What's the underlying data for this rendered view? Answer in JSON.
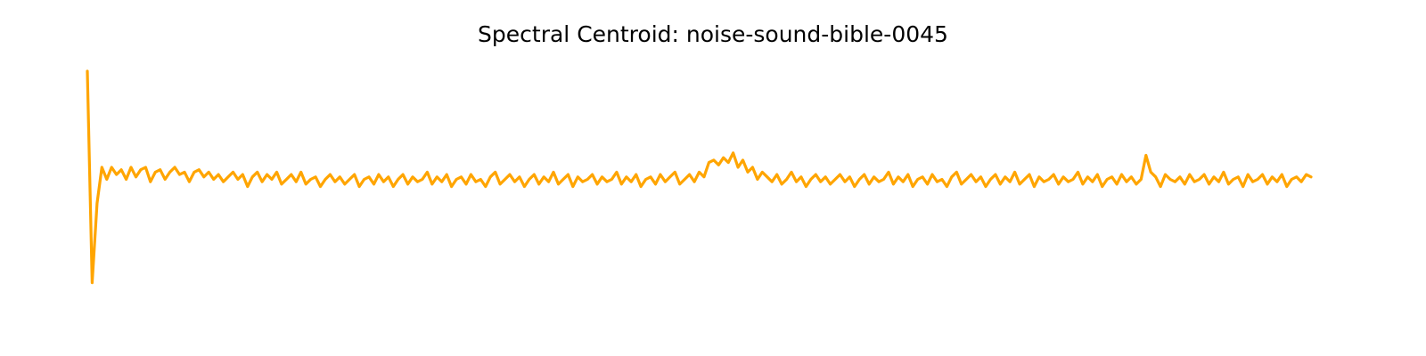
{
  "chart_data": {
    "type": "line",
    "title": "Spectral Centroid: noise-sound-bible-0045",
    "xlabel": "",
    "ylabel": "",
    "axes_visible": false,
    "grid": false,
    "line_color": "#FFA500",
    "series": [
      {
        "values": [
          1.0,
          0.12,
          0.45,
          0.6,
          0.55,
          0.6,
          0.57,
          0.59,
          0.55,
          0.6,
          0.56,
          0.59,
          0.6,
          0.54,
          0.58,
          0.59,
          0.55,
          0.58,
          0.6,
          0.57,
          0.58,
          0.54,
          0.58,
          0.59,
          0.56,
          0.58,
          0.55,
          0.57,
          0.54,
          0.56,
          0.58,
          0.55,
          0.57,
          0.52,
          0.56,
          0.58,
          0.54,
          0.57,
          0.55,
          0.58,
          0.53,
          0.55,
          0.57,
          0.54,
          0.58,
          0.53,
          0.55,
          0.56,
          0.52,
          0.55,
          0.57,
          0.54,
          0.56,
          0.53,
          0.55,
          0.57,
          0.52,
          0.55,
          0.56,
          0.53,
          0.57,
          0.54,
          0.56,
          0.52,
          0.55,
          0.57,
          0.53,
          0.56,
          0.54,
          0.55,
          0.58,
          0.53,
          0.56,
          0.54,
          0.57,
          0.52,
          0.55,
          0.56,
          0.53,
          0.57,
          0.54,
          0.55,
          0.52,
          0.56,
          0.58,
          0.53,
          0.55,
          0.57,
          0.54,
          0.56,
          0.52,
          0.55,
          0.57,
          0.53,
          0.56,
          0.54,
          0.58,
          0.53,
          0.55,
          0.57,
          0.52,
          0.56,
          0.54,
          0.55,
          0.57,
          0.53,
          0.56,
          0.54,
          0.55,
          0.58,
          0.53,
          0.56,
          0.54,
          0.57,
          0.52,
          0.55,
          0.56,
          0.53,
          0.57,
          0.54,
          0.56,
          0.58,
          0.53,
          0.55,
          0.57,
          0.54,
          0.58,
          0.56,
          0.62,
          0.63,
          0.61,
          0.64,
          0.62,
          0.66,
          0.6,
          0.63,
          0.58,
          0.6,
          0.55,
          0.58,
          0.56,
          0.54,
          0.57,
          0.53,
          0.55,
          0.58,
          0.54,
          0.56,
          0.52,
          0.55,
          0.57,
          0.54,
          0.56,
          0.53,
          0.55,
          0.57,
          0.54,
          0.56,
          0.52,
          0.55,
          0.57,
          0.53,
          0.56,
          0.54,
          0.55,
          0.58,
          0.53,
          0.56,
          0.54,
          0.57,
          0.52,
          0.55,
          0.56,
          0.53,
          0.57,
          0.54,
          0.55,
          0.52,
          0.56,
          0.58,
          0.53,
          0.55,
          0.57,
          0.54,
          0.56,
          0.52,
          0.55,
          0.57,
          0.53,
          0.56,
          0.54,
          0.58,
          0.53,
          0.55,
          0.57,
          0.52,
          0.56,
          0.54,
          0.55,
          0.57,
          0.53,
          0.56,
          0.54,
          0.55,
          0.58,
          0.53,
          0.56,
          0.54,
          0.57,
          0.52,
          0.55,
          0.56,
          0.53,
          0.57,
          0.54,
          0.56,
          0.53,
          0.55,
          0.65,
          0.58,
          0.56,
          0.52,
          0.57,
          0.55,
          0.54,
          0.56,
          0.53,
          0.57,
          0.54,
          0.55,
          0.57,
          0.53,
          0.56,
          0.54,
          0.58,
          0.53,
          0.55,
          0.56,
          0.52,
          0.57,
          0.54,
          0.55,
          0.57,
          0.53,
          0.56,
          0.54,
          0.57,
          0.52,
          0.55,
          0.56,
          0.54,
          0.57,
          0.56
        ]
      }
    ]
  }
}
